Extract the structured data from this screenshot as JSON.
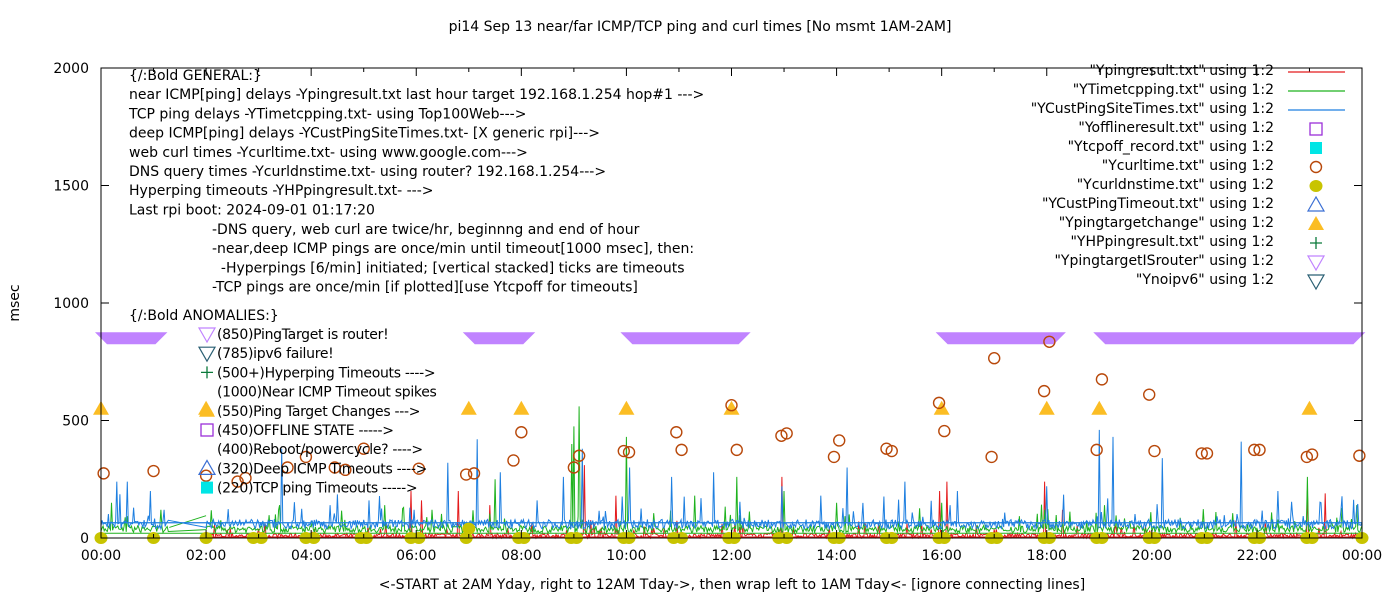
{
  "chart_data": {
    "type": "line",
    "title": "pi14 Sep 13  near/far ICMP/TCP ping and curl times [No msmt 1AM-2AM]",
    "xlabel": "<-START at 2AM Yday, right to 12AM Tday->, then wrap left to 1AM Tday<- [ignore connecting lines]",
    "ylabel": "msec",
    "xlim_hours": [
      0,
      24
    ],
    "ylim": [
      0,
      2000
    ],
    "grid": false,
    "legend_position": "top-right",
    "x_ticks": [
      "00:00",
      "02:00",
      "04:00",
      "06:00",
      "08:00",
      "10:00",
      "12:00",
      "14:00",
      "16:00",
      "18:00",
      "20:00",
      "22:00",
      "00:00"
    ],
    "x_tick_hours": [
      0,
      2,
      4,
      6,
      8,
      10,
      12,
      14,
      16,
      18,
      20,
      22,
      24
    ],
    "y_ticks": [
      "0",
      "500",
      "1000",
      "1500",
      "2000"
    ],
    "y_tick_values": [
      0,
      500,
      1000,
      1500,
      2000
    ],
    "colors": {
      "ping": "#e41a1c",
      "tcp": "#1eb21e",
      "deep": "#1e7fe0",
      "offline": "#9b30d9",
      "tcpoff": "#00e5e5",
      "curl": "#b8480a",
      "dns": "#c8c400",
      "custtimeout": "#3b6fd4",
      "targetchange": "#fbbd24",
      "hpping": "#0a7a3a",
      "isrouter": "#c083ff",
      "noipv6": "#2a5f73"
    },
    "legend": [
      {
        "label": "\"Ypingresult.txt\" using 1:2",
        "style": "line",
        "color_key": "ping"
      },
      {
        "label": "\"YTimetcpping.txt\" using 1:2",
        "style": "line",
        "color_key": "tcp"
      },
      {
        "label": "\"YCustPingSiteTimes.txt\" using 1:2",
        "style": "line",
        "color_key": "deep"
      },
      {
        "label": "\"Yofflineresult.txt\" using 1:2",
        "style": "open-square",
        "color_key": "offline"
      },
      {
        "label": "\"Ytcpoff_record.txt\" using 1:2",
        "style": "filled-square",
        "color_key": "tcpoff"
      },
      {
        "label": "\"Ycurltime.txt\" using 1:2",
        "style": "open-circle",
        "color_key": "curl"
      },
      {
        "label": "\"Ycurldnstime.txt\" using 1:2",
        "style": "filled-circle",
        "color_key": "dns"
      },
      {
        "label": "\"YCustPingTimeout.txt\" using 1:2",
        "style": "open-triangle-up",
        "color_key": "custtimeout"
      },
      {
        "label": "\"Ypingtargetchange\" using 1:2",
        "style": "filled-triangle-up",
        "color_key": "targetchange"
      },
      {
        "label": "\"YHPpingresult.txt\" using 1:2",
        "style": "plus",
        "color_key": "hpping"
      },
      {
        "label": "\"YpingtargetISrouter\" using 1:2",
        "style": "open-triangle-down",
        "color_key": "isrouter"
      },
      {
        "label": "\"Ynoipv6\" using 1:2",
        "style": "open-triangle-down",
        "color_key": "noipv6"
      }
    ],
    "general_notes": [
      "{/:Bold GENERAL:}",
      "near ICMP[ping] delays -Ypingresult.txt last hour target 192.168.1.254 hop#1 --->",
      "TCP ping delays -YTimetcpping.txt- using Top100Web--->",
      "deep ICMP[ping] delays -YCustPingSiteTimes.txt- [X generic rpi]--->",
      "web curl times -Ycurltime.txt- using www.google.com--->",
      "DNS query times -Ycurldnstime.txt- using router? 192.168.1.254--->",
      "Hyperping timeouts -YHPpingresult.txt- --->",
      "Last rpi boot: 2024-09-01 01:17:20"
    ],
    "detail_notes": [
      "-DNS query, web curl are twice/hr, beginnng and end of hour",
      "-near,deep ICMP pings are once/min until timeout[1000 msec], then:",
      "  -Hyperpings [6/min] initiated; [vertical stacked] ticks are timeouts",
      "-TCP pings are once/min [if plotted][use Ytcpoff for timeouts]"
    ],
    "anomalies_heading": "{/:Bold ANOMALIES:}",
    "anomalies": [
      {
        "text": "(850)PingTarget is router!",
        "marker": "open-triangle-down",
        "color_key": "isrouter"
      },
      {
        "text": "(785)ipv6 failure!",
        "marker": "open-triangle-down",
        "color_key": "noipv6"
      },
      {
        "text": "(500+)Hyperping Timeouts ---->",
        "marker": "plus",
        "color_key": "hpping"
      },
      {
        "text": "(1000)Near ICMP Timeout spikes",
        "marker": "none",
        "color_key": ""
      },
      {
        "text": "(550)Ping Target Changes --->",
        "marker": "filled-triangle-up",
        "color_key": "targetchange"
      },
      {
        "text": "(450)OFFLINE STATE ----->",
        "marker": "open-square",
        "color_key": "offline"
      },
      {
        "text": "(400)Reboot/powercycle? ---->",
        "marker": "none",
        "color_key": ""
      },
      {
        "text": "(320)Deep ICMP Timeouts ---->",
        "marker": "open-triangle-up",
        "color_key": "custtimeout"
      },
      {
        "text": "(220)TCP ping Timeouts ----->",
        "marker": "filled-square",
        "color_key": "tcpoff"
      }
    ],
    "series": {
      "isrouter_value": 850,
      "isrouter_ranges_hours": [
        [
          0.0,
          1.15
        ],
        [
          7.0,
          8.15
        ],
        [
          10.0,
          12.25
        ],
        [
          16.0,
          18.25
        ],
        [
          19.0,
          23.95
        ]
      ],
      "targetchange_value": 550,
      "targetchange_hours": [
        0.0,
        2.0,
        7.0,
        8.0,
        10.0,
        12.0,
        16.0,
        18.0,
        19.0,
        23.0
      ],
      "curl_points": [
        [
          0.05,
          275
        ],
        [
          1.0,
          285
        ],
        [
          2.0,
          265
        ],
        [
          2.6,
          240
        ],
        [
          2.75,
          255
        ],
        [
          3.55,
          300
        ],
        [
          3.9,
          345
        ],
        [
          4.45,
          300
        ],
        [
          4.65,
          290
        ],
        [
          5.0,
          380
        ],
        [
          6.05,
          295
        ],
        [
          6.95,
          270
        ],
        [
          7.1,
          275
        ],
        [
          7.85,
          330
        ],
        [
          8.0,
          450
        ],
        [
          9.0,
          300
        ],
        [
          9.1,
          350
        ],
        [
          9.95,
          370
        ],
        [
          10.05,
          365
        ],
        [
          10.95,
          450
        ],
        [
          11.05,
          375
        ],
        [
          12.0,
          565
        ],
        [
          12.1,
          375
        ],
        [
          12.95,
          435
        ],
        [
          13.05,
          445
        ],
        [
          13.95,
          345
        ],
        [
          14.05,
          415
        ],
        [
          14.95,
          380
        ],
        [
          15.05,
          370
        ],
        [
          15.95,
          575
        ],
        [
          16.05,
          455
        ],
        [
          16.95,
          345
        ],
        [
          17.0,
          765
        ],
        [
          17.95,
          625
        ],
        [
          18.05,
          835
        ],
        [
          18.95,
          375
        ],
        [
          19.05,
          675
        ],
        [
          19.95,
          610
        ],
        [
          20.05,
          370
        ],
        [
          20.95,
          360
        ],
        [
          21.05,
          360
        ],
        [
          21.95,
          375
        ],
        [
          22.05,
          375
        ],
        [
          22.95,
          345
        ],
        [
          23.05,
          355
        ],
        [
          23.95,
          350
        ]
      ],
      "dns_value": 0,
      "dns_hours": [
        0.0,
        1.0,
        2.0,
        2.9,
        3.05,
        3.9,
        4.05,
        4.95,
        5.05,
        5.9,
        6.05,
        6.95,
        7.95,
        8.05,
        8.95,
        9.05,
        9.95,
        10.05,
        10.9,
        11.05,
        11.95,
        12.05,
        12.9,
        13.05,
        13.95,
        14.05,
        14.95,
        15.05,
        15.95,
        16.05,
        16.95,
        17.05,
        17.95,
        18.05,
        18.95,
        19.05,
        19.95,
        20.05,
        20.95,
        21.05,
        21.95,
        22.05,
        22.95,
        23.05,
        24.0
      ],
      "dns_outlier": [
        7.0,
        40
      ],
      "ping_baseline_msec": 8,
      "tcp_baseline_msec": 35,
      "deep_baseline_msec": 55,
      "ping_spikes": [
        [
          5.9,
          200
        ],
        [
          6.1,
          160
        ],
        [
          6.8,
          200
        ],
        [
          7.4,
          140
        ],
        [
          9.2,
          310
        ],
        [
          9.8,
          180
        ],
        [
          12.95,
          260
        ],
        [
          15.95,
          200
        ],
        [
          16.1,
          240
        ],
        [
          17.95,
          240
        ],
        [
          18.3,
          120
        ],
        [
          22.95,
          200
        ],
        [
          23.3,
          190
        ]
      ],
      "tcp_spikes": [
        [
          0.2,
          150
        ],
        [
          1.15,
          120
        ],
        [
          3.4,
          140
        ],
        [
          5.4,
          140
        ],
        [
          6.3,
          120
        ],
        [
          7.5,
          250
        ],
        [
          8.95,
          400
        ],
        [
          9.0,
          475
        ],
        [
          9.1,
          560
        ],
        [
          10.0,
          430
        ],
        [
          11.3,
          180
        ],
        [
          12.1,
          260
        ],
        [
          13.0,
          200
        ],
        [
          14.0,
          150
        ],
        [
          16.0,
          150
        ],
        [
          17.95,
          120
        ],
        [
          19.1,
          140
        ],
        [
          22.95,
          260
        ],
        [
          23.9,
          140
        ]
      ],
      "deep_spikes": [
        [
          0.3,
          240
        ],
        [
          0.5,
          240
        ],
        [
          0.95,
          200
        ],
        [
          1.2,
          120
        ],
        [
          3.45,
          380
        ],
        [
          4.35,
          140
        ],
        [
          5.1,
          160
        ],
        [
          5.95,
          120
        ],
        [
          6.6,
          320
        ],
        [
          7.15,
          420
        ],
        [
          7.6,
          280
        ],
        [
          8.3,
          160
        ],
        [
          8.8,
          260
        ],
        [
          9.15,
          380
        ],
        [
          10.05,
          300
        ],
        [
          10.85,
          260
        ],
        [
          11.65,
          280
        ],
        [
          12.95,
          220
        ],
        [
          13.7,
          180
        ],
        [
          14.2,
          300
        ],
        [
          15.3,
          240
        ],
        [
          16.3,
          200
        ],
        [
          18.0,
          220
        ],
        [
          19.0,
          460
        ],
        [
          19.25,
          430
        ],
        [
          20.2,
          340
        ],
        [
          21.7,
          410
        ],
        [
          22.4,
          200
        ],
        [
          23.6,
          120
        ]
      ]
    }
  }
}
